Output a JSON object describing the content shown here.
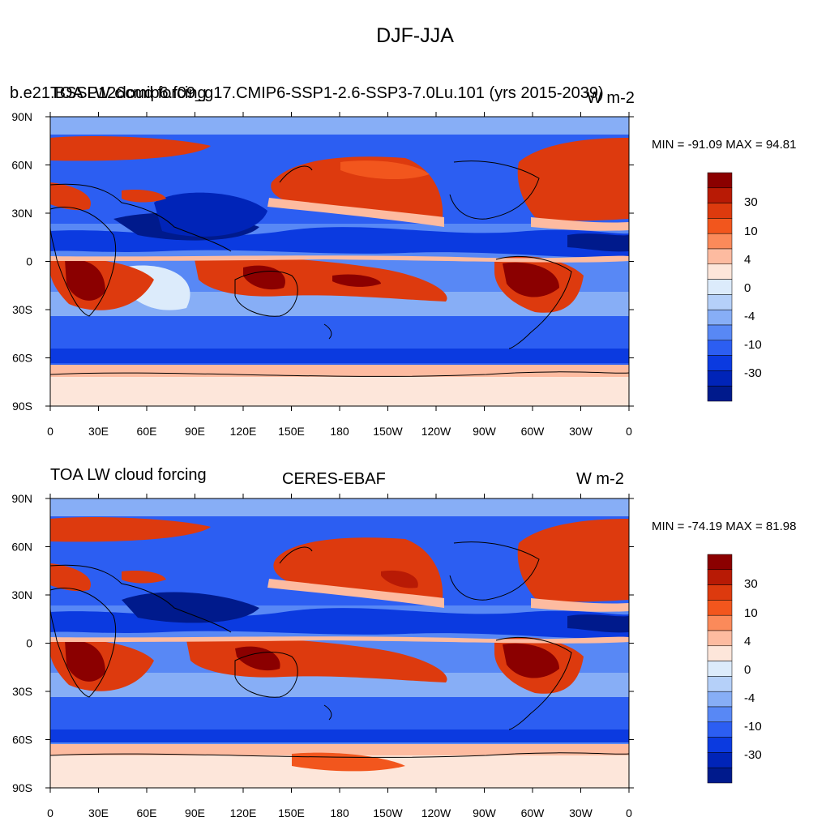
{
  "main_title": "DJF-JJA",
  "lon_ticks": [
    "0",
    "30E",
    "60E",
    "90E",
    "120E",
    "150E",
    "180",
    "150W",
    "120W",
    "90W",
    "60W",
    "30W",
    "0"
  ],
  "lat_ticks": [
    "90N",
    "60N",
    "30N",
    "0",
    "30S",
    "60S",
    "90S"
  ],
  "colorbar": {
    "labels": [
      "30",
      "10",
      "4",
      "0",
      "-4",
      "-10",
      "-30"
    ],
    "colors": [
      "#8b0000",
      "#b81a05",
      "#dd3a0e",
      "#f2561d",
      "#fb8a5a",
      "#fdbba0",
      "#fde6da",
      "#dcebfb",
      "#b5d0f9",
      "#87aef6",
      "#5888f5",
      "#2c5ef2",
      "#0b3ae0",
      "#0024b8",
      "#001a8c"
    ]
  },
  "panels": [
    {
      "id": "model",
      "left_title": "TOA LW cloud forcing",
      "case_title": "b.e21.BSSP126cmip6.f09_g17.CMIP6-SSP1-2.6-SSP3-7.0Lu.101 (yrs 2015-2039)",
      "units": "W m-2",
      "min_max": "MIN = -91.09 MAX =  94.81"
    },
    {
      "id": "obs",
      "left_title": "TOA LW cloud forcing",
      "case_title": "CERES-EBAF",
      "units": "W m-2",
      "min_max": "MIN = -74.19 MAX =  81.98"
    }
  ]
}
